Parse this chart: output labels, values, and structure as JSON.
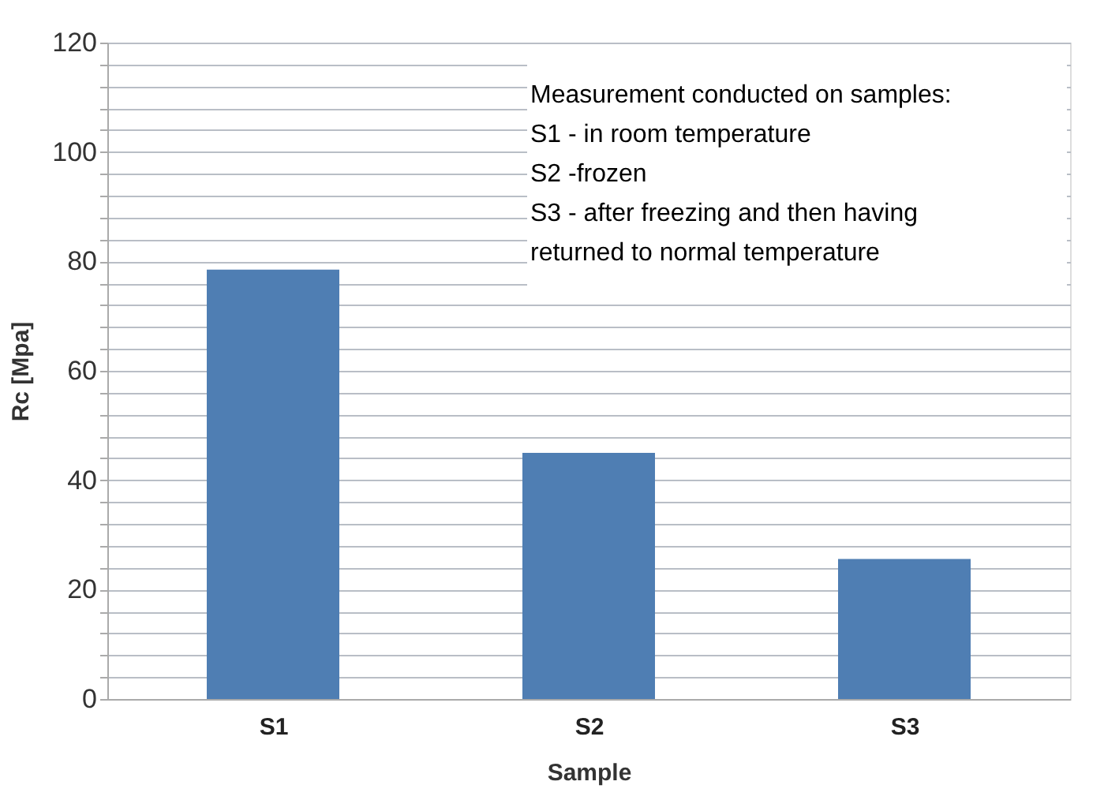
{
  "chart_data": {
    "type": "bar",
    "xlabel": "Sample",
    "ylabel": "Rc [Mpa]",
    "categories": [
      "S1",
      "S2",
      "S3"
    ],
    "values": [
      78.5,
      45,
      25.6
    ],
    "color": "#4f7eb3",
    "ylim": [
      0,
      120
    ],
    "yticks": [
      0,
      {
        "value": 4,
        "label": null
      },
      {
        "value": 8,
        "label": null
      },
      {
        "value": 12,
        "label": null
      },
      {
        "value": 16,
        "label": null
      },
      20,
      {
        "value": 24,
        "label": null
      },
      {
        "value": 28,
        "label": null
      },
      {
        "value": 32,
        "label": null
      },
      {
        "value": 36,
        "label": null
      },
      40,
      {
        "value": 44,
        "label": null
      },
      {
        "value": 48,
        "label": null
      },
      {
        "value": 52,
        "label": null
      },
      {
        "value": 56,
        "label": null
      },
      60,
      {
        "value": 64,
        "label": null
      },
      {
        "value": 68,
        "label": null
      },
      {
        "value": 72,
        "label": null
      },
      {
        "value": 76,
        "label": null
      },
      80,
      {
        "value": 84,
        "label": null
      },
      {
        "value": 88,
        "label": null
      },
      {
        "value": 92,
        "label": null
      },
      {
        "value": 96,
        "label": null
      },
      100,
      {
        "value": 104,
        "label": null
      },
      {
        "value": 108,
        "label": null
      },
      {
        "value": 112,
        "label": null
      },
      {
        "value": 116,
        "label": null
      },
      120
    ],
    "grid": "y",
    "annotations": [
      "Measurement conducted on samples:\nS1 - in room temperature\nS2 -frozen\nS3 - after freezing and then having\nreturned to normal temperature"
    ]
  }
}
